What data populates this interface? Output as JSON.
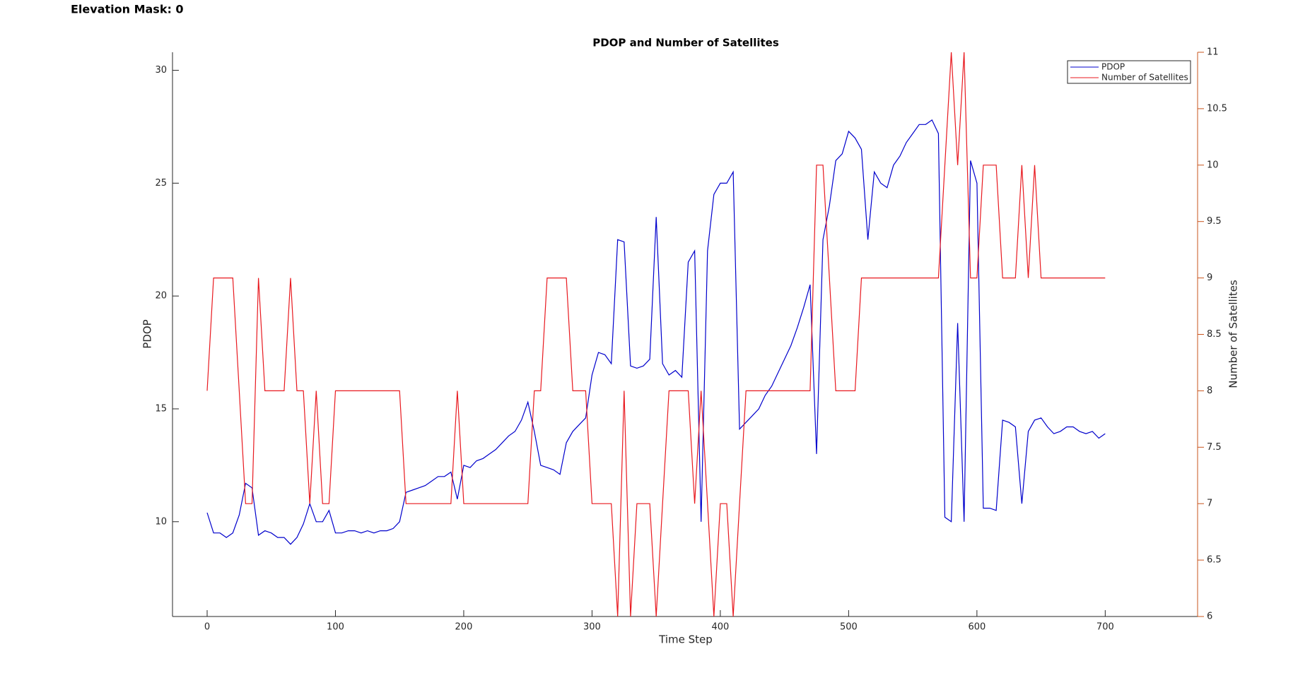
{
  "header": {
    "title": "Elevation Mask: 0"
  },
  "chart_data": {
    "type": "line",
    "title": "PDOP and Number of Satellites",
    "x_label": "Time Step",
    "y_label": "PDOP",
    "y2_label": "Number of Satellites",
    "x": [
      0,
      5,
      10,
      15,
      20,
      25,
      30,
      35,
      40,
      45,
      50,
      55,
      60,
      65,
      70,
      75,
      80,
      85,
      90,
      95,
      100,
      105,
      110,
      115,
      120,
      125,
      130,
      135,
      140,
      145,
      150,
      155,
      160,
      165,
      170,
      175,
      180,
      185,
      190,
      195,
      200,
      205,
      210,
      215,
      220,
      225,
      230,
      235,
      240,
      245,
      250,
      255,
      260,
      265,
      270,
      275,
      280,
      285,
      290,
      295,
      300,
      305,
      310,
      315,
      320,
      325,
      330,
      335,
      340,
      345,
      350,
      355,
      360,
      365,
      370,
      375,
      380,
      385,
      390,
      395,
      400,
      405,
      410,
      415,
      420,
      425,
      430,
      435,
      440,
      445,
      450,
      455,
      460,
      465,
      470,
      475,
      480,
      485,
      490,
      495,
      500,
      505,
      510,
      515,
      520,
      525,
      530,
      535,
      540,
      545,
      550,
      555,
      560,
      565,
      570,
      575,
      580,
      585,
      590,
      595,
      600,
      605,
      610,
      615,
      620,
      625,
      630,
      635,
      640,
      645,
      650,
      655,
      660,
      665,
      670,
      675,
      680,
      685,
      690,
      695,
      700
    ],
    "series": [
      {
        "name": "PDOP",
        "color": "#0000cc",
        "axis": "y",
        "values": [
          10.4,
          9.5,
          9.5,
          9.3,
          9.5,
          10.3,
          11.7,
          11.5,
          9.4,
          9.6,
          9.5,
          9.3,
          9.3,
          9.0,
          9.3,
          9.9,
          10.8,
          10.0,
          10.0,
          10.5,
          9.5,
          9.5,
          9.6,
          9.6,
          9.5,
          9.6,
          9.5,
          9.6,
          9.6,
          9.7,
          10.0,
          11.3,
          11.4,
          11.5,
          11.6,
          11.8,
          12.0,
          12.0,
          12.2,
          11.0,
          12.5,
          12.4,
          12.7,
          12.8,
          13.0,
          13.2,
          13.5,
          13.8,
          14.0,
          14.5,
          15.3,
          14.0,
          12.5,
          12.4,
          12.3,
          12.1,
          13.5,
          14.0,
          14.3,
          14.6,
          16.5,
          17.5,
          17.4,
          17.0,
          22.5,
          22.4,
          16.9,
          16.8,
          16.9,
          17.2,
          23.5,
          17.0,
          16.5,
          16.7,
          16.4,
          21.5,
          22.0,
          10.0,
          22.0,
          24.5,
          25.0,
          25.0,
          25.5,
          14.1,
          14.4,
          14.7,
          15.0,
          15.6,
          16.0,
          16.6,
          17.2,
          17.8,
          18.6,
          19.5,
          20.5,
          13.0,
          22.5,
          24.0,
          26.0,
          26.3,
          27.3,
          27.0,
          26.5,
          22.5,
          25.5,
          25.0,
          24.8,
          25.8,
          26.2,
          26.8,
          27.2,
          27.6,
          27.6,
          27.8,
          27.2,
          10.2,
          10.0,
          18.8,
          10.0,
          26.0,
          25.0,
          10.6,
          10.6,
          10.5,
          14.5,
          14.4,
          14.2,
          10.8,
          14.0,
          14.5,
          14.6,
          14.2,
          13.9,
          14.0,
          14.2,
          14.2,
          14.0,
          13.9,
          14.0,
          13.7,
          13.9
        ]
      },
      {
        "name": "Number of Satellites",
        "color": "#e8191f",
        "axis": "y2",
        "values": [
          8,
          9,
          9,
          9,
          9,
          8,
          7,
          7,
          9,
          8,
          8,
          8,
          8,
          9,
          8,
          8,
          7,
          8,
          7,
          7,
          8,
          8,
          8,
          8,
          8,
          8,
          8,
          8,
          8,
          8,
          8,
          7,
          7,
          7,
          7,
          7,
          7,
          7,
          7,
          8,
          7,
          7,
          7,
          7,
          7,
          7,
          7,
          7,
          7,
          7,
          7,
          8,
          8,
          9,
          9,
          9,
          9,
          8,
          8,
          8,
          7,
          7,
          7,
          7,
          6,
          8,
          6,
          7,
          7,
          7,
          6,
          7,
          8,
          8,
          8,
          8,
          7,
          8,
          7,
          6,
          7,
          7,
          6,
          7,
          8,
          8,
          8,
          8,
          8,
          8,
          8,
          8,
          8,
          8,
          8,
          10,
          10,
          9,
          8,
          8,
          8,
          8,
          9,
          9,
          9,
          9,
          9,
          9,
          9,
          9,
          9,
          9,
          9,
          9,
          9,
          10,
          11,
          10,
          11,
          9,
          9,
          10,
          10,
          10,
          9,
          9,
          9,
          10,
          9,
          10,
          9,
          9,
          9,
          9,
          9,
          9,
          9,
          9,
          9,
          9,
          9
        ]
      }
    ],
    "xlim": [
      -27,
      772
    ],
    "xticks": [
      0,
      100,
      200,
      300,
      400,
      500,
      600,
      700
    ],
    "ylim": [
      5.8,
      30.8
    ],
    "yticks": [
      10,
      15,
      20,
      25,
      30
    ],
    "y2lim": [
      6,
      11
    ],
    "y2ticks": [
      6,
      6.5,
      7,
      7.5,
      8,
      8.5,
      9,
      9.5,
      10,
      10.5,
      11
    ],
    "y2_color": "#c8541c",
    "legend": "upper right",
    "grid": false
  }
}
